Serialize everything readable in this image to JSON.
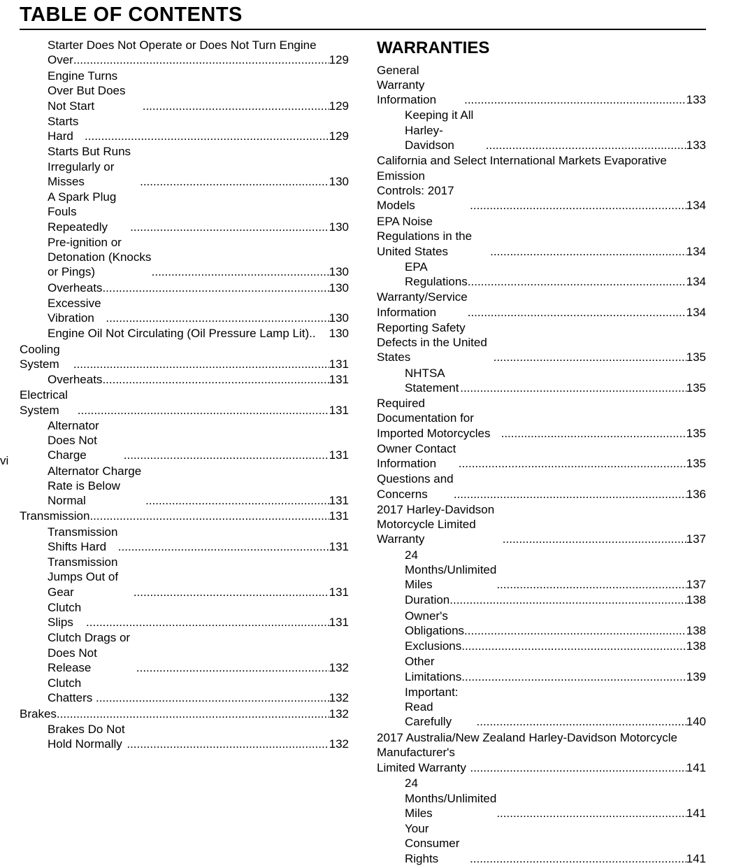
{
  "title": "TABLE OF CONTENTS",
  "folio": "vi",
  "dot_fill": "........................................................................................................................",
  "left_column": [
    {
      "level": 1,
      "text": "Starter Does Not Operate or Does Not Turn Engine Over",
      "page": "129",
      "wrap": true
    },
    {
      "level": 1,
      "text": "Engine Turns Over But Does Not Start",
      "page": "129"
    },
    {
      "level": 1,
      "text": "Starts Hard",
      "page": "129"
    },
    {
      "level": 1,
      "text": "Starts But Runs Irregularly or Misses",
      "page": "130"
    },
    {
      "level": 1,
      "text": "A Spark Plug Fouls Repeatedly",
      "page": "130"
    },
    {
      "level": 1,
      "text": "Pre-ignition or Detonation (Knocks or Pings)",
      "page": "130"
    },
    {
      "level": 1,
      "text": "Overheats",
      "page": "130"
    },
    {
      "level": 1,
      "text": "Excessive Vibration",
      "page": "130"
    },
    {
      "level": 1,
      "text": "Engine Oil Not Circulating (Oil Pressure Lamp Lit)",
      "page": "130",
      "tight": true
    },
    {
      "level": 0,
      "text": "Cooling System",
      "page": "131"
    },
    {
      "level": 1,
      "text": "Overheats",
      "page": "131"
    },
    {
      "level": 0,
      "text": "Electrical System",
      "page": "131"
    },
    {
      "level": 1,
      "text": "Alternator Does Not Charge",
      "page": "131"
    },
    {
      "level": 1,
      "text": "Alternator Charge Rate is Below Normal",
      "page": "131"
    },
    {
      "level": 0,
      "text": "Transmission",
      "page": "131"
    },
    {
      "level": 1,
      "text": "Transmission Shifts Hard",
      "page": "131"
    },
    {
      "level": 1,
      "text": "Transmission Jumps Out of Gear",
      "page": "131"
    },
    {
      "level": 1,
      "text": "Clutch Slips",
      "page": "131"
    },
    {
      "level": 1,
      "text": "Clutch Drags or Does Not Release",
      "page": "132"
    },
    {
      "level": 1,
      "text": "Clutch Chatters",
      "page": "132"
    },
    {
      "level": 0,
      "text": "Brakes",
      "page": "132"
    },
    {
      "level": 1,
      "text": "Brakes Do Not Hold Normally",
      "page": "132"
    }
  ],
  "right_section_title": "WARRANTIES",
  "right_column": [
    {
      "level": 0,
      "text": "General Warranty Information",
      "page": "133"
    },
    {
      "level": 1,
      "text": "Keeping it All Harley-Davidson",
      "page": "133"
    },
    {
      "level": 0,
      "text": "California and Select International Markets Evaporative Emission Controls: 2017 Models",
      "page": "134",
      "wrap": true
    },
    {
      "level": 0,
      "text": "EPA Noise Regulations in the United States",
      "page": "134"
    },
    {
      "level": 1,
      "text": "EPA Regulations",
      "page": "134"
    },
    {
      "level": 0,
      "text": "Warranty/Service Information",
      "page": "134"
    },
    {
      "level": 0,
      "text": "Reporting Safety Defects in the United States",
      "page": "135"
    },
    {
      "level": 1,
      "text": "NHTSA Statement",
      "page": "135"
    },
    {
      "level": 0,
      "text": "Required Documentation for Imported Motorcycles",
      "page": "135"
    },
    {
      "level": 0,
      "text": "Owner Contact Information",
      "page": "135"
    },
    {
      "level": 0,
      "text": "Questions and Concerns",
      "page": "136"
    },
    {
      "level": 0,
      "text": "2017 Harley-Davidson Motorcycle Limited Warranty",
      "page": "137"
    },
    {
      "level": 1,
      "text": "24 Months/Unlimited Miles",
      "page": "137"
    },
    {
      "level": 1,
      "text": "Duration",
      "page": "138"
    },
    {
      "level": 1,
      "text": "Owner's Obligations",
      "page": "138"
    },
    {
      "level": 1,
      "text": "Exclusions",
      "page": "138"
    },
    {
      "level": 1,
      "text": "Other Limitations",
      "page": "139"
    },
    {
      "level": 1,
      "text": "Important: Read Carefully",
      "page": "140"
    },
    {
      "level": 0,
      "text": "2017 Australia/New Zealand Harley-Davidson Motorcycle Manufacturer's Limited Warranty",
      "page": "141",
      "wrap": true
    },
    {
      "level": 1,
      "text": "24 Months/Unlimited Miles",
      "page": "141"
    },
    {
      "level": 1,
      "text": "Your Consumer Rights",
      "page": "141"
    }
  ]
}
